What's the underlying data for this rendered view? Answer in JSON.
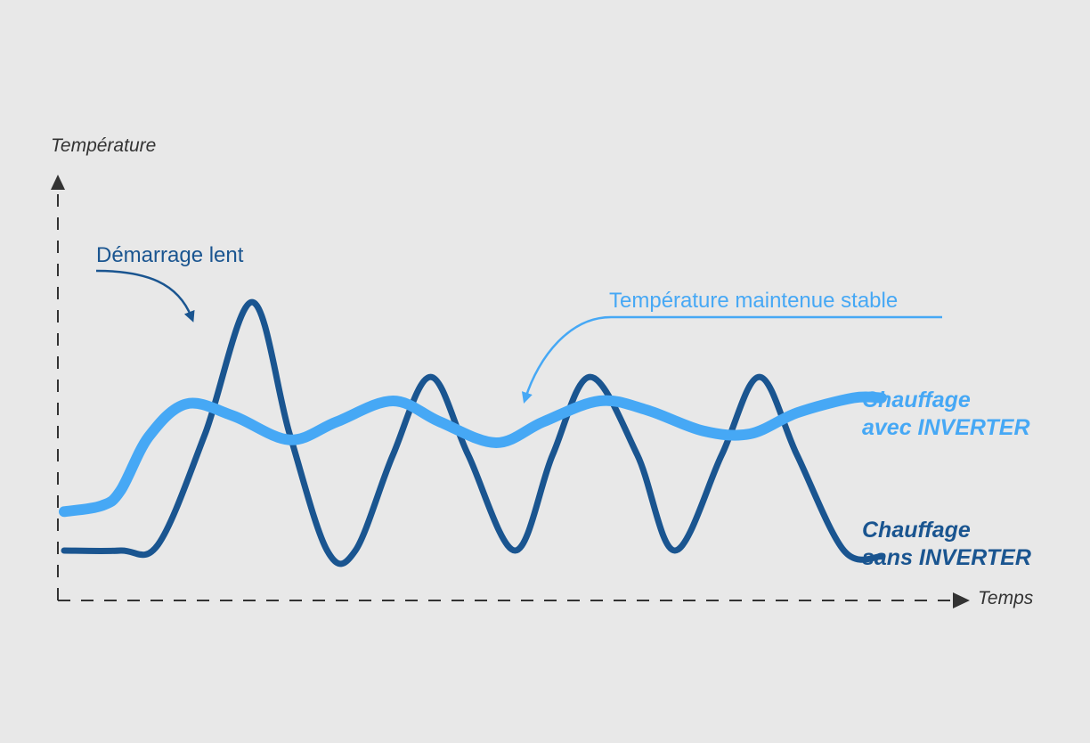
{
  "chart_data": {
    "type": "line",
    "title": "",
    "ylabel": "Température",
    "xlabel": "Temps",
    "grid": false,
    "axis_ticks": false,
    "series": [
      {
        "name": "Chauffage sans INVERTER",
        "label_lines": [
          "Chauffage",
          "sans INVERTER"
        ],
        "color": "#1a5590",
        "x": [
          0,
          6,
          10,
          15,
          20,
          24,
          28,
          31,
          35,
          39,
          43,
          48,
          52,
          56,
          61,
          65,
          70,
          74,
          78,
          83,
          87
        ],
        "y": [
          5,
          5,
          7,
          44,
          88,
          44,
          5,
          5,
          37,
          63,
          37,
          5,
          37,
          63,
          37,
          5,
          37,
          63,
          37,
          5,
          3
        ]
      },
      {
        "name": "Chauffage avec INVERTER",
        "label_lines": [
          "Chauffage",
          "avec INVERTER"
        ],
        "color": "#46a8f5",
        "x": [
          0,
          4,
          6,
          9,
          13,
          18,
          24,
          29,
          35,
          40,
          46,
          51,
          57,
          62,
          68,
          73,
          78,
          84,
          87
        ],
        "y": [
          18,
          20,
          25,
          43,
          54,
          50,
          42,
          48,
          55,
          48,
          41,
          48,
          55,
          52,
          45,
          44,
          51,
          56,
          56
        ]
      }
    ],
    "annotations": [
      {
        "text": "Démarrage lent",
        "color": "#1a5590"
      },
      {
        "text": "Température maintenue stable",
        "color": "#46a8f5"
      }
    ]
  }
}
